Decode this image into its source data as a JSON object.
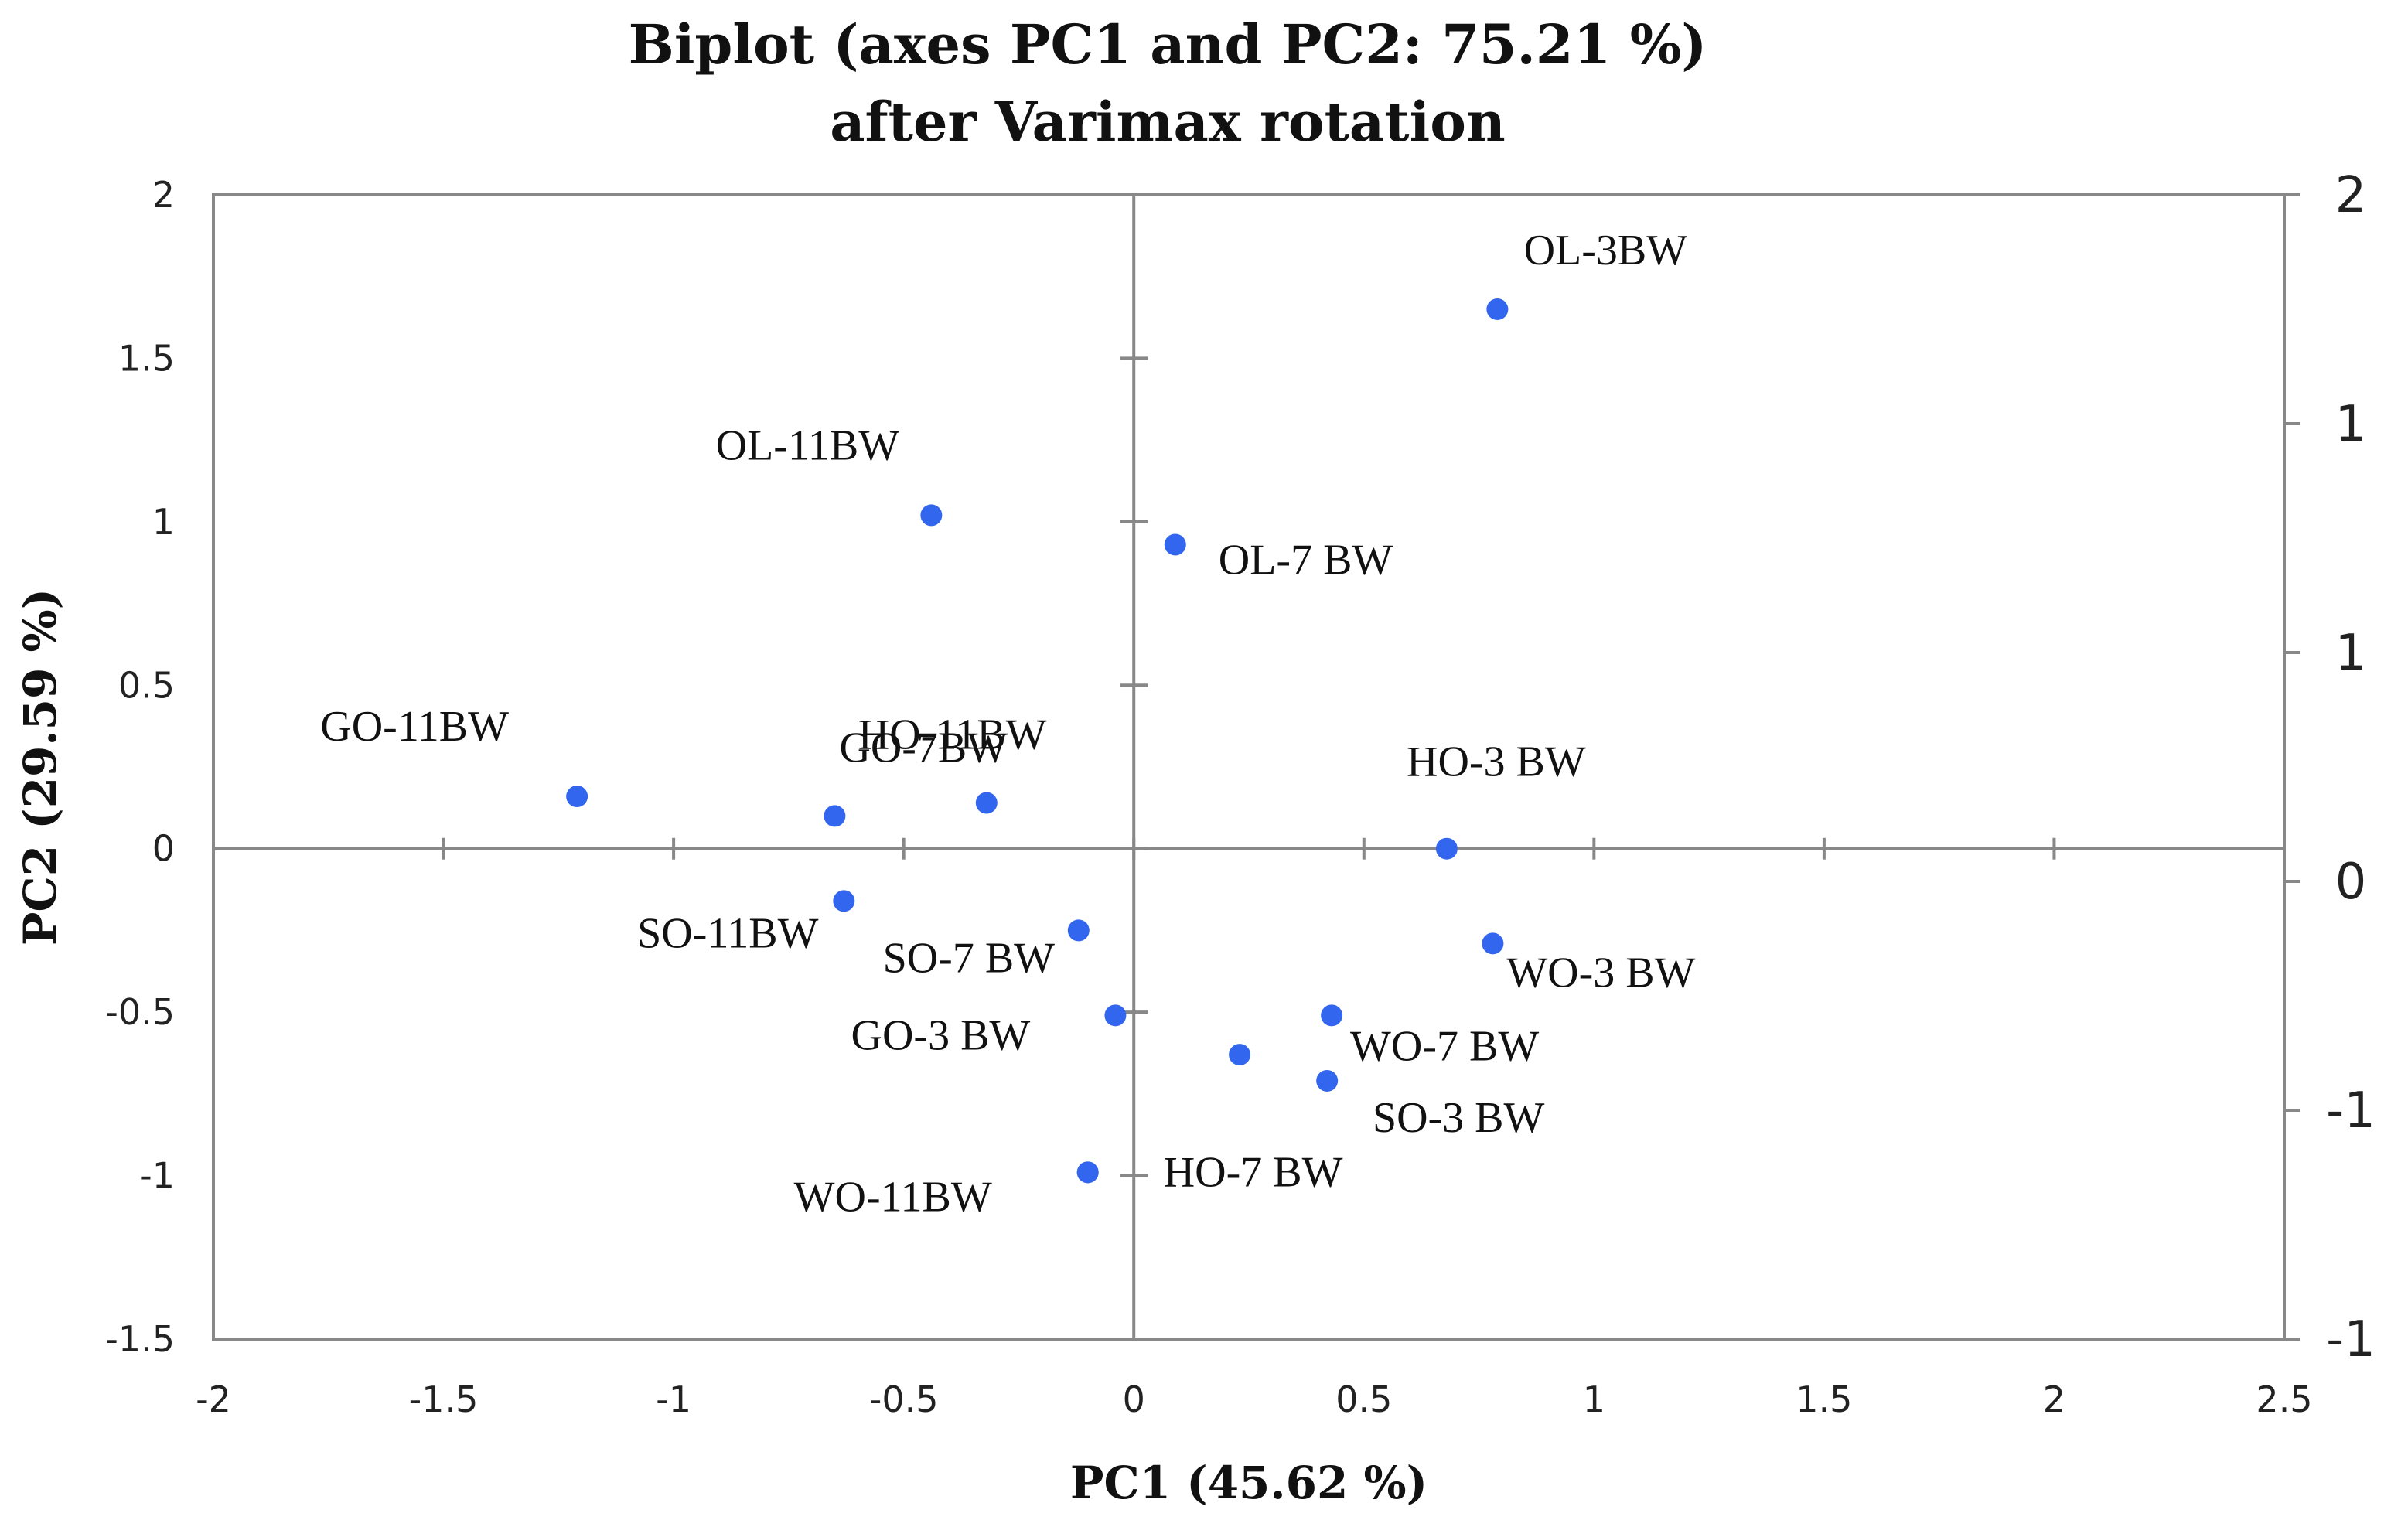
{
  "chart_data": {
    "type": "scatter",
    "title": "Biplot (axes PC1 and PC2: 75.21 %)",
    "subtitle": "after Varimax rotation",
    "xlabel": "PC1 (45.62 %)",
    "ylabel": "PC2 (29.59 %)",
    "xlim": [
      -2,
      2.5
    ],
    "ylim": [
      -1.5,
      2
    ],
    "x_ticks": [
      "-2",
      "-1.5",
      "-1",
      "-0.5",
      "0",
      "0.5",
      "1",
      "1.5",
      "2",
      "2.5"
    ],
    "y_ticks": [
      "-1.5",
      "-1",
      "-0.5",
      "0",
      "0.5",
      "1",
      "1.5",
      "2"
    ],
    "y2_ticks": [
      "-1",
      "-1",
      "0",
      "1",
      "1",
      "2"
    ],
    "grid": false,
    "marker_color": "#3366ee",
    "points": [
      {
        "label": "OL-3BW",
        "x": 0.79,
        "y": 1.65
      },
      {
        "label": "OL-11BW",
        "x": -0.44,
        "y": 1.02
      },
      {
        "label": "OL-7 BW",
        "x": 0.09,
        "y": 0.93
      },
      {
        "label": "GO-11BW",
        "x": -1.21,
        "y": 0.16
      },
      {
        "label": "GO-7BW",
        "x": -0.65,
        "y": 0.1
      },
      {
        "label": "HO-11BW",
        "x": -0.32,
        "y": 0.14
      },
      {
        "label": "HO-3 BW",
        "x": 0.68,
        "y": 0.0
      },
      {
        "label": "SO-11BW",
        "x": -0.63,
        "y": -0.16
      },
      {
        "label": "SO-7 BW",
        "x": -0.12,
        "y": -0.25
      },
      {
        "label": "WO-3 BW",
        "x": 0.78,
        "y": -0.29
      },
      {
        "label": "GO-3 BW",
        "x": -0.04,
        "y": -0.51
      },
      {
        "label": "WO-7 BW",
        "x": 0.43,
        "y": -0.51
      },
      {
        "label": "",
        "x": 0.23,
        "y": -0.63
      },
      {
        "label": "SO-3 BW",
        "x": 0.42,
        "y": -0.71
      },
      {
        "label": "HO-7 BW",
        "x": -0.1,
        "y": -0.99
      },
      {
        "label": "WO-11BW",
        "x": -0.1,
        "y": -0.99
      }
    ]
  }
}
